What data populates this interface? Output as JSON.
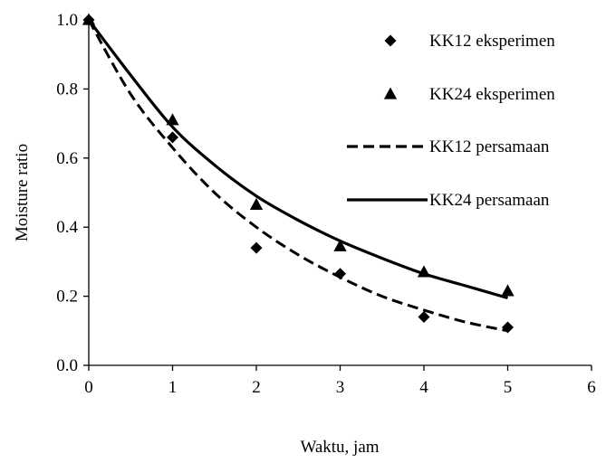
{
  "chart_data": {
    "type": "scatter",
    "xlabel": "Waktu, jam",
    "ylabel": "Moisture ratio",
    "xlim": [
      0,
      6
    ],
    "ylim": [
      0,
      1.0
    ],
    "x_ticks": [
      "0",
      "1",
      "2",
      "3",
      "4",
      "5",
      "6"
    ],
    "y_ticks": [
      "0.0",
      "0.2",
      "0.4",
      "0.6",
      "0.8",
      "1.0"
    ],
    "grid": false,
    "legend_position": "top-right",
    "series": [
      {
        "name": "KK12 eksperimen",
        "kind": "scatter",
        "marker": "diamond",
        "x": [
          0,
          1,
          2,
          3,
          4,
          5
        ],
        "y": [
          1.0,
          0.66,
          0.34,
          0.265,
          0.14,
          0.11
        ]
      },
      {
        "name": "KK24 eksperimen",
        "kind": "scatter",
        "marker": "triangle",
        "x": [
          0,
          1,
          2,
          3,
          4,
          5
        ],
        "y": [
          1.0,
          0.71,
          0.465,
          0.345,
          0.27,
          0.215
        ]
      },
      {
        "name": "KK12 persamaan",
        "kind": "line",
        "dash": "dashed",
        "x": [
          0,
          0.5,
          1,
          1.5,
          2,
          2.5,
          3,
          3.5,
          4,
          4.5,
          5
        ],
        "y": [
          1.0,
          0.785,
          0.63,
          0.5,
          0.4,
          0.32,
          0.255,
          0.2,
          0.16,
          0.125,
          0.1
        ]
      },
      {
        "name": "KK24 persamaan",
        "kind": "line",
        "dash": "solid",
        "x": [
          0,
          0.5,
          1,
          1.5,
          2,
          2.5,
          3,
          3.5,
          4,
          4.5,
          5
        ],
        "y": [
          1.0,
          0.84,
          0.69,
          0.58,
          0.49,
          0.42,
          0.36,
          0.31,
          0.265,
          0.23,
          0.195
        ]
      }
    ],
    "colors": {
      "ink": "#000000",
      "background": "#ffffff"
    }
  }
}
